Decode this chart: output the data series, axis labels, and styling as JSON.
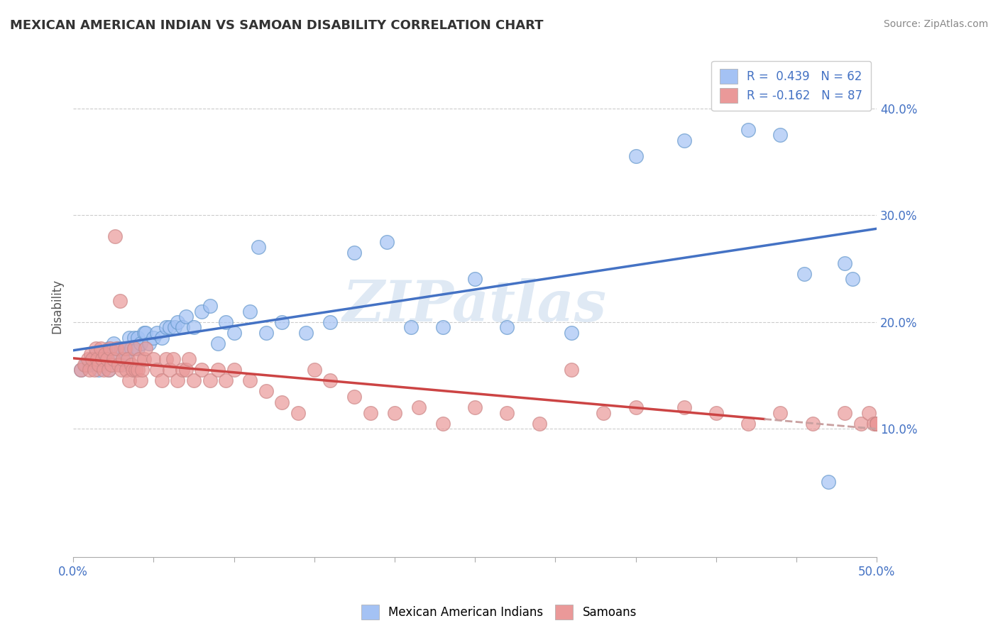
{
  "title": "MEXICAN AMERICAN INDIAN VS SAMOAN DISABILITY CORRELATION CHART",
  "source": "Source: ZipAtlas.com",
  "ylabel": "Disability",
  "xlim": [
    0.0,
    0.5
  ],
  "ylim": [
    -0.02,
    0.45
  ],
  "xtick_positions": [
    0.0,
    0.05,
    0.1,
    0.15,
    0.2,
    0.25,
    0.3,
    0.35,
    0.4,
    0.45,
    0.5
  ],
  "xtick_labels": [
    "0.0%",
    "",
    "",
    "",
    "",
    "",
    "",
    "",
    "",
    "",
    "50.0%"
  ],
  "ytick_positions": [
    0.1,
    0.2,
    0.3,
    0.4
  ],
  "ytick_labels": [
    "10.0%",
    "20.0%",
    "30.0%",
    "40.0%"
  ],
  "blue_color": "#a4c2f4",
  "pink_color": "#ea9999",
  "blue_line_color": "#4472c4",
  "pink_line_color": "#cc4444",
  "pink_dash_color": "#c9a0a0",
  "watermark": "ZIPatlas",
  "legend_blue_label": "R =  0.439   N = 62",
  "legend_pink_label": "R = -0.162   N = 87",
  "blue_scatter_x": [
    0.005,
    0.008,
    0.01,
    0.012,
    0.014,
    0.016,
    0.018,
    0.02,
    0.022,
    0.022,
    0.025,
    0.025,
    0.028,
    0.03,
    0.03,
    0.032,
    0.033,
    0.035,
    0.036,
    0.038,
    0.04,
    0.04,
    0.042,
    0.044,
    0.045,
    0.047,
    0.05,
    0.052,
    0.055,
    0.058,
    0.06,
    0.063,
    0.065,
    0.068,
    0.07,
    0.075,
    0.08,
    0.085,
    0.09,
    0.095,
    0.1,
    0.11,
    0.115,
    0.12,
    0.13,
    0.145,
    0.16,
    0.175,
    0.195,
    0.21,
    0.23,
    0.25,
    0.27,
    0.31,
    0.35,
    0.38,
    0.42,
    0.44,
    0.455,
    0.47,
    0.48,
    0.485
  ],
  "blue_scatter_y": [
    0.155,
    0.16,
    0.16,
    0.165,
    0.17,
    0.155,
    0.165,
    0.17,
    0.155,
    0.175,
    0.17,
    0.18,
    0.175,
    0.16,
    0.175,
    0.17,
    0.175,
    0.185,
    0.175,
    0.185,
    0.175,
    0.185,
    0.18,
    0.19,
    0.19,
    0.18,
    0.185,
    0.19,
    0.185,
    0.195,
    0.195,
    0.195,
    0.2,
    0.195,
    0.205,
    0.195,
    0.21,
    0.215,
    0.18,
    0.2,
    0.19,
    0.21,
    0.27,
    0.19,
    0.2,
    0.19,
    0.2,
    0.265,
    0.275,
    0.195,
    0.195,
    0.24,
    0.195,
    0.19,
    0.355,
    0.37,
    0.38,
    0.375,
    0.245,
    0.05,
    0.255,
    0.24
  ],
  "pink_scatter_x": [
    0.005,
    0.007,
    0.009,
    0.01,
    0.011,
    0.012,
    0.013,
    0.014,
    0.015,
    0.016,
    0.017,
    0.018,
    0.019,
    0.02,
    0.021,
    0.022,
    0.023,
    0.024,
    0.025,
    0.026,
    0.027,
    0.028,
    0.029,
    0.03,
    0.031,
    0.032,
    0.033,
    0.034,
    0.035,
    0.036,
    0.037,
    0.038,
    0.039,
    0.04,
    0.041,
    0.042,
    0.043,
    0.044,
    0.045,
    0.05,
    0.052,
    0.055,
    0.058,
    0.06,
    0.062,
    0.065,
    0.068,
    0.07,
    0.072,
    0.075,
    0.08,
    0.085,
    0.09,
    0.095,
    0.1,
    0.11,
    0.12,
    0.13,
    0.14,
    0.15,
    0.16,
    0.175,
    0.185,
    0.2,
    0.215,
    0.23,
    0.25,
    0.27,
    0.29,
    0.31,
    0.33,
    0.35,
    0.38,
    0.4,
    0.42,
    0.44,
    0.46,
    0.48,
    0.49,
    0.495,
    0.498,
    0.5,
    0.5,
    0.5,
    0.5,
    0.5,
    0.5
  ],
  "pink_scatter_y": [
    0.155,
    0.16,
    0.165,
    0.155,
    0.17,
    0.165,
    0.155,
    0.175,
    0.165,
    0.16,
    0.175,
    0.165,
    0.155,
    0.17,
    0.165,
    0.155,
    0.175,
    0.16,
    0.165,
    0.28,
    0.175,
    0.16,
    0.22,
    0.155,
    0.165,
    0.175,
    0.155,
    0.165,
    0.145,
    0.16,
    0.155,
    0.175,
    0.155,
    0.155,
    0.165,
    0.145,
    0.155,
    0.165,
    0.175,
    0.165,
    0.155,
    0.145,
    0.165,
    0.155,
    0.165,
    0.145,
    0.155,
    0.155,
    0.165,
    0.145,
    0.155,
    0.145,
    0.155,
    0.145,
    0.155,
    0.145,
    0.135,
    0.125,
    0.115,
    0.155,
    0.145,
    0.13,
    0.115,
    0.115,
    0.12,
    0.105,
    0.12,
    0.115,
    0.105,
    0.155,
    0.115,
    0.12,
    0.12,
    0.115,
    0.105,
    0.115,
    0.105,
    0.115,
    0.105,
    0.115,
    0.105,
    0.105,
    0.105,
    0.105,
    0.105,
    0.105,
    0.105
  ]
}
